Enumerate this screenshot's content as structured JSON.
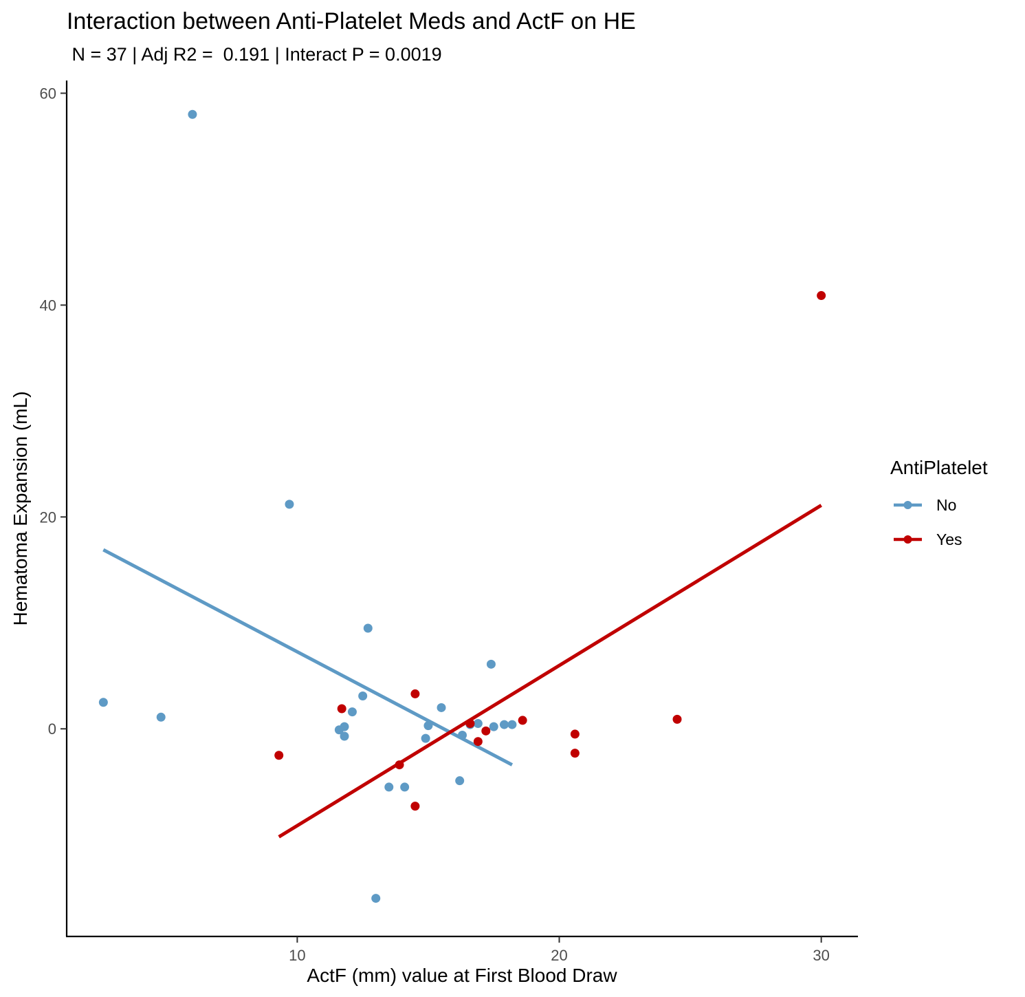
{
  "chart_data": {
    "type": "scatter",
    "title": "Interaction between Anti-Platelet Meds and ActF on HE",
    "subtitle": " N = 37 | Adj R2 =  0.191 | Interact P = 0.0019",
    "xlabel": "ActF (mm) value at First Blood Draw",
    "ylabel": "Hematoma Expansion (mL)",
    "xlim": [
      1.2,
      31.4
    ],
    "ylim": [
      -19.6,
      61.2
    ],
    "x_ticks": [
      10,
      20,
      30
    ],
    "x_tick_labels": [
      "10",
      "20",
      "30"
    ],
    "y_ticks": [
      0,
      20,
      40,
      60
    ],
    "y_tick_labels": [
      "0",
      "20",
      "40",
      "60"
    ],
    "grid": false,
    "legend": {
      "title": "AntiPlatelet",
      "placement": "right"
    },
    "series": [
      {
        "name": "No",
        "color": "#5e9ac5",
        "points": [
          [
            2.6,
            2.5
          ],
          [
            4.8,
            1.1
          ],
          [
            6.0,
            58.0
          ],
          [
            9.7,
            21.2
          ],
          [
            11.6,
            -0.1
          ],
          [
            11.8,
            0.2
          ],
          [
            11.8,
            -0.7
          ],
          [
            12.1,
            1.6
          ],
          [
            12.5,
            3.1
          ],
          [
            12.7,
            9.5
          ],
          [
            13.0,
            -16.0
          ],
          [
            13.5,
            -5.5
          ],
          [
            14.1,
            -5.5
          ],
          [
            14.9,
            -0.9
          ],
          [
            15.0,
            0.3
          ],
          [
            15.5,
            2.0
          ],
          [
            16.2,
            -4.9
          ],
          [
            16.3,
            -0.6
          ],
          [
            16.6,
            0.4
          ],
          [
            16.9,
            0.5
          ],
          [
            17.4,
            6.1
          ],
          [
            17.5,
            0.2
          ],
          [
            17.9,
            0.4
          ],
          [
            18.2,
            0.4
          ]
        ],
        "fit": [
          [
            2.6,
            16.9
          ],
          [
            18.2,
            -3.4
          ]
        ]
      },
      {
        "name": "Yes",
        "color": "#c00000",
        "points": [
          [
            9.3,
            -2.5
          ],
          [
            11.7,
            1.9
          ],
          [
            13.9,
            -3.4
          ],
          [
            14.5,
            3.3
          ],
          [
            14.5,
            -7.3
          ],
          [
            16.6,
            0.5
          ],
          [
            16.9,
            -1.2
          ],
          [
            17.2,
            -0.2
          ],
          [
            18.6,
            0.8
          ],
          [
            20.6,
            -0.5
          ],
          [
            20.6,
            -2.3
          ],
          [
            24.5,
            0.9
          ],
          [
            30.0,
            40.9
          ]
        ],
        "fit": [
          [
            9.3,
            -10.2
          ],
          [
            30.0,
            21.1
          ]
        ]
      }
    ]
  }
}
